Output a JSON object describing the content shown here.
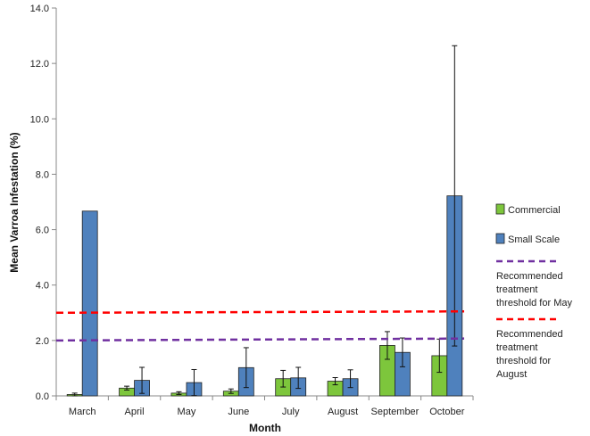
{
  "chart_data": {
    "type": "bar",
    "xlabel": "Month",
    "ylabel": "Mean Varroa Infestation (%)",
    "ylim": [
      0,
      14
    ],
    "yticks": [
      "0.0",
      "2.0",
      "4.0",
      "6.0",
      "8.0",
      "10.0",
      "12.0",
      "14.0"
    ],
    "categories": [
      "March",
      "April",
      "May",
      "June",
      "July",
      "August",
      "September",
      "October"
    ],
    "series": [
      {
        "name": "Commercial",
        "color": "#7dc63c",
        "values": [
          0.05,
          0.28,
          0.1,
          0.17,
          0.62,
          0.53,
          1.82,
          1.45
        ],
        "error": [
          0.05,
          0.07,
          0.05,
          0.08,
          0.3,
          0.13,
          0.5,
          0.6
        ]
      },
      {
        "name": "Small Scale",
        "color": "#4f81bd",
        "values": [
          6.67,
          0.56,
          0.48,
          1.02,
          0.65,
          0.62,
          1.57,
          7.22
        ],
        "error": [
          null,
          0.47,
          0.47,
          0.72,
          0.38,
          0.32,
          0.52,
          5.42
        ]
      }
    ],
    "thresholds": [
      {
        "name": "Recommended treatment threshold for May",
        "lines": [
          "Recommended",
          "treatment",
          "threshold for May"
        ],
        "color": "#7030a0",
        "start": 2.0,
        "end": 2.07
      },
      {
        "name": "Recommended treatment threshold for August",
        "lines": [
          "Recommended",
          "treatment",
          "threshold for",
          "August"
        ],
        "color": "#ff0000",
        "start": 3.0,
        "end": 3.05
      }
    ],
    "legend_position": "right",
    "grid": false
  }
}
